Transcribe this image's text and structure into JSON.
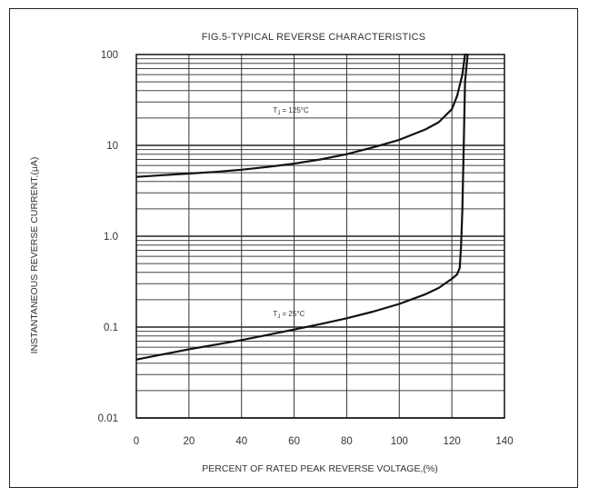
{
  "chart_data": {
    "type": "line",
    "title": "FIG.5-TYPICAL REVERSE CHARACTERISTICS",
    "xlabel": "PERCENT OF RATED PEAK REVERSE VOLTAGE,(%)",
    "ylabel": "INSTANTANEOUS REVERSE CURRENT,(μA)",
    "x_ticks": [
      "0",
      "20",
      "40",
      "60",
      "80",
      "100",
      "120",
      "140"
    ],
    "y_ticks": [
      "0.01",
      "0.1",
      "1.0",
      "10",
      "100"
    ],
    "xlim": [
      0,
      140
    ],
    "ylim": [
      0.01,
      100
    ],
    "y_scale": "log",
    "grid": true,
    "series": [
      {
        "name": "TJ = 125°C",
        "label_main": "T",
        "label_sub": "J",
        "label_rest": " = 125°C",
        "x": [
          0,
          10,
          20,
          30,
          40,
          50,
          60,
          70,
          80,
          90,
          100,
          110,
          115,
          120,
          122,
          124,
          125,
          125.5,
          126
        ],
        "y": [
          4.5,
          4.7,
          4.9,
          5.1,
          5.4,
          5.8,
          6.3,
          7.0,
          8.0,
          9.5,
          11.5,
          15,
          18,
          25,
          35,
          60,
          100,
          120,
          150
        ]
      },
      {
        "name": "TJ = 25°C",
        "label_main": "T",
        "label_sub": "J",
        "label_rest": " = 25°C",
        "x": [
          0,
          10,
          20,
          30,
          40,
          50,
          60,
          70,
          80,
          90,
          100,
          110,
          115,
          120,
          122,
          123,
          123.5,
          124,
          124.5,
          125,
          126
        ],
        "y": [
          0.044,
          0.05,
          0.057,
          0.064,
          0.072,
          0.082,
          0.094,
          0.108,
          0.125,
          0.148,
          0.18,
          0.23,
          0.27,
          0.34,
          0.38,
          0.45,
          0.8,
          2,
          10,
          50,
          150
        ]
      }
    ]
  }
}
